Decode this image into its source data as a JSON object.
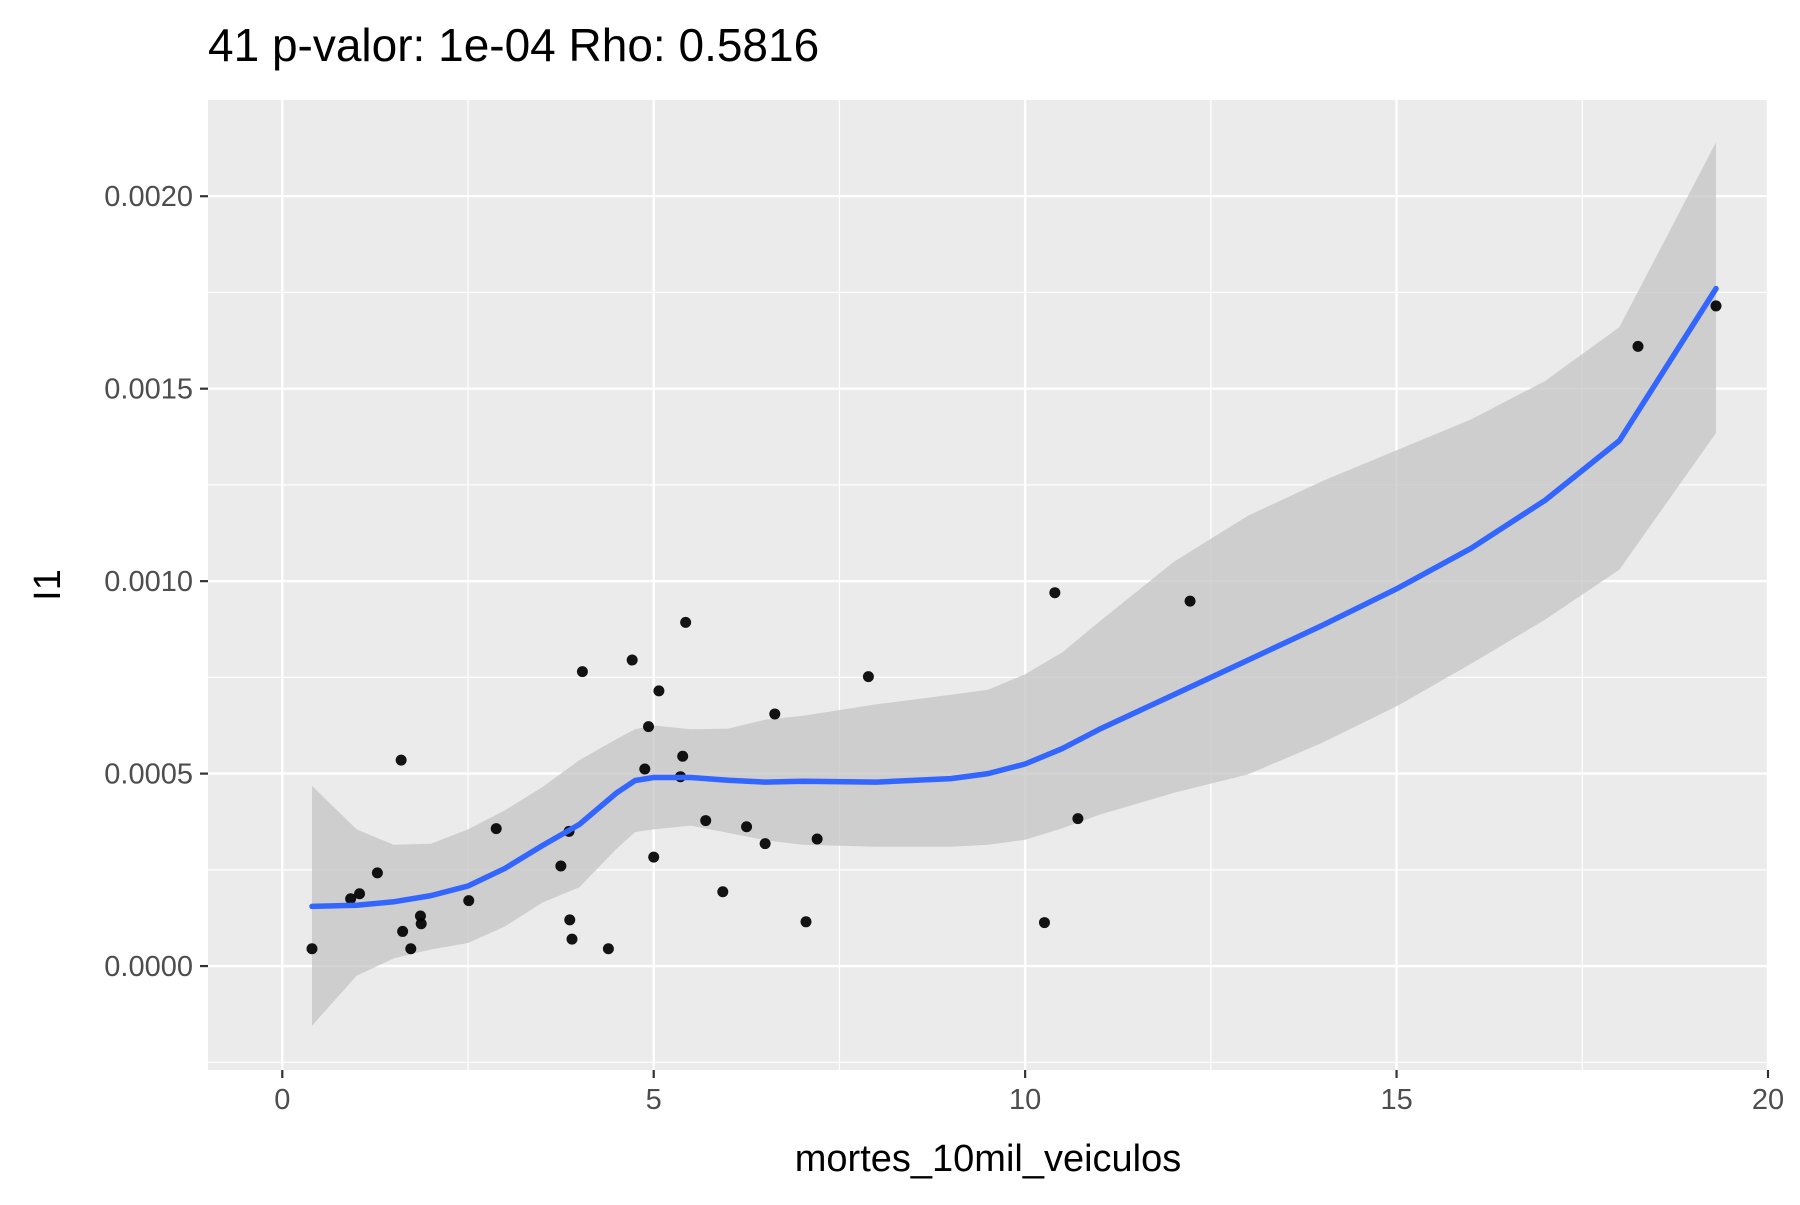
{
  "chart_data": {
    "type": "scatter",
    "title": "41 p-valor: 1e-04 Rho: 0.5816",
    "xlabel": "mortes_10mil_veiculos",
    "ylabel": "I1",
    "xlim": [
      -1.0,
      20.0
    ],
    "ylim": [
      -0.00027,
      0.00225
    ],
    "x_ticks": [
      0,
      5,
      10,
      15,
      20
    ],
    "x_tick_labels": [
      "0",
      "5",
      "10",
      "15",
      "20"
    ],
    "y_ticks": [
      0.0,
      0.0005,
      0.001,
      0.0015,
      0.002
    ],
    "y_tick_labels": [
      "0.0000",
      "0.0005",
      "0.0010",
      "0.0015",
      "0.0020"
    ],
    "grid": true,
    "background": "#ebebeb",
    "colors": {
      "points": "#000000",
      "smooth_line": "#3366ff",
      "confidence_band": "#c4c4c4"
    },
    "points": [
      [
        0.4,
        4.5e-05
      ],
      [
        0.92,
        0.000175
      ],
      [
        1.04,
        0.000188
      ],
      [
        1.28,
        0.000242
      ],
      [
        1.6,
        0.000535
      ],
      [
        1.62,
        9e-05
      ],
      [
        1.73,
        4.5e-05
      ],
      [
        1.86,
        0.00013
      ],
      [
        1.87,
        0.00011
      ],
      [
        2.51,
        0.00017
      ],
      [
        2.88,
        0.000357
      ],
      [
        3.75,
        0.00026
      ],
      [
        3.86,
        0.00035
      ],
      [
        3.87,
        0.00012
      ],
      [
        3.9,
        7e-05
      ],
      [
        4.04,
        0.000765
      ],
      [
        4.39,
        4.5e-05
      ],
      [
        4.71,
        0.000795
      ],
      [
        4.88,
        0.000512
      ],
      [
        4.93,
        0.000622
      ],
      [
        5.0,
        0.000283
      ],
      [
        5.07,
        0.000715
      ],
      [
        5.36,
        0.000492
      ],
      [
        5.39,
        0.000545
      ],
      [
        5.43,
        0.000893
      ],
      [
        5.7,
        0.000378
      ],
      [
        5.93,
        0.000193
      ],
      [
        6.25,
        0.000362
      ],
      [
        6.5,
        0.000318
      ],
      [
        6.63,
        0.000655
      ],
      [
        7.05,
        0.000115
      ],
      [
        7.2,
        0.00033
      ],
      [
        7.89,
        0.000752
      ],
      [
        10.26,
        0.000113
      ],
      [
        10.4,
        0.00097
      ],
      [
        10.71,
        0.000383
      ],
      [
        12.22,
        0.000948
      ],
      [
        18.25,
        0.00161
      ],
      [
        19.3,
        0.001715
      ]
    ],
    "smooth": {
      "x": [
        0.4,
        1.0,
        1.5,
        2.0,
        2.5,
        3.0,
        3.5,
        4.0,
        4.5,
        4.75,
        5.0,
        5.5,
        6.0,
        6.5,
        7.0,
        8.0,
        9.0,
        9.5,
        10.0,
        10.5,
        11.0,
        12.0,
        13.0,
        14.0,
        15.0,
        16.0,
        17.0,
        18.0,
        19.3
      ],
      "y": [
        0.000155,
        0.000158,
        0.000167,
        0.000183,
        0.000208,
        0.000254,
        0.000313,
        0.000368,
        0.00045,
        0.000482,
        0.00049,
        0.00049,
        0.000483,
        0.000478,
        0.00048,
        0.000478,
        0.000487,
        0.0005,
        0.000525,
        0.000565,
        0.000615,
        0.000705,
        0.000795,
        0.000885,
        0.00098,
        0.001085,
        0.00121,
        0.001365,
        0.00176
      ]
    },
    "band_upper": [
      0.000468,
      0.000355,
      0.000315,
      0.000318,
      0.000355,
      0.000405,
      0.000465,
      0.000535,
      0.00059,
      0.000615,
      0.000625,
      0.000615,
      0.000617,
      0.00064,
      0.00065,
      0.00068,
      0.000705,
      0.000718,
      0.000758,
      0.000815,
      0.000895,
      0.00105,
      0.00117,
      0.00126,
      0.00134,
      0.00142,
      0.00152,
      0.00166,
      0.00214
    ],
    "band_lower": [
      -0.000155,
      -2.5e-05,
      2e-05,
      4.3e-05,
      6e-05,
      0.000103,
      0.000165,
      0.000205,
      0.000305,
      0.000348,
      0.000355,
      0.000365,
      0.000346,
      0.000327,
      0.000315,
      0.00031,
      0.00031,
      0.000315,
      0.000328,
      0.000358,
      0.000393,
      0.00045,
      0.000498,
      0.00058,
      0.000675,
      0.000785,
      0.0009,
      0.00103,
      0.001385
    ]
  }
}
